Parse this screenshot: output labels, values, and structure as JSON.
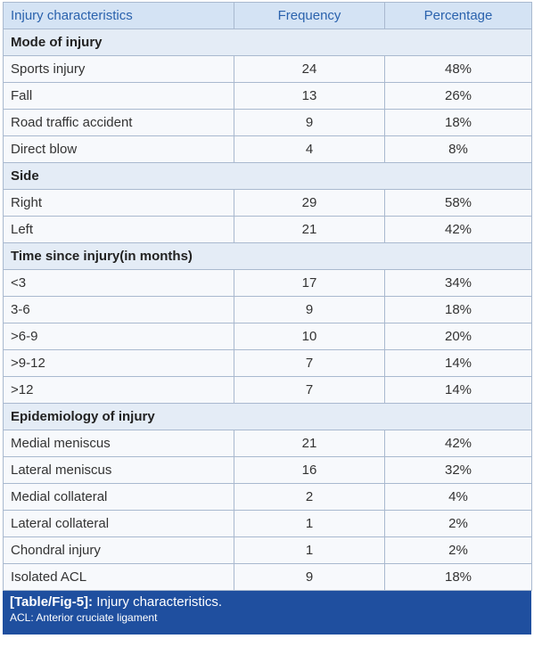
{
  "header": [
    "Injury characteristics",
    "Frequency",
    "Percentage"
  ],
  "sections": [
    {
      "title": "Mode of injury",
      "rows": [
        [
          "Sports injury",
          24,
          "48%"
        ],
        [
          "Fall",
          13,
          "26%"
        ],
        [
          "Road traffic accident",
          9,
          "18%"
        ],
        [
          "Direct blow",
          4,
          "8%"
        ]
      ]
    },
    {
      "title": "Side",
      "rows": [
        [
          "Right",
          29,
          "58%"
        ],
        [
          "Left",
          21,
          "42%"
        ]
      ]
    },
    {
      "title": "Time since injury(in months)",
      "rows": [
        [
          "<3",
          17,
          "34%"
        ],
        [
          "3-6",
          9,
          "18%"
        ],
        [
          ">6-9",
          10,
          "20%"
        ],
        [
          ">9-12",
          7,
          "14%"
        ],
        [
          ">12",
          7,
          "14%"
        ]
      ]
    },
    {
      "title": "Epidemiology of injury",
      "rows": [
        [
          "Medial meniscus",
          21,
          "42%"
        ],
        [
          "Lateral meniscus",
          16,
          "32%"
        ],
        [
          "Medial collateral",
          2,
          "4%"
        ],
        [
          "Lateral collateral",
          1,
          "2%"
        ],
        [
          "Chondral injury",
          1,
          "2%"
        ],
        [
          "Isolated ACL",
          9,
          "18%"
        ]
      ]
    }
  ],
  "caption": {
    "label": "[Table/Fig-5]:",
    "text": "Injury characteristics.",
    "note": "ACL: Anterior cruciate ligament"
  }
}
